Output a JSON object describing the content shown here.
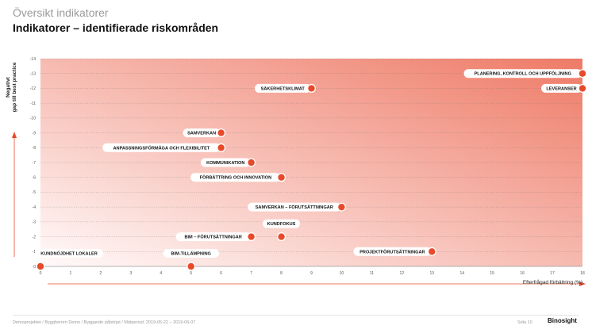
{
  "header": {
    "supertitle": "Översikt indikatorer",
    "title": "Indikatorer – identifierade riskområden"
  },
  "colors": {
    "point": "#e8492a",
    "grad_light": "#fffafa",
    "grad_dark": "#ee7a66",
    "arrow": "#e8492a"
  },
  "chart_data": {
    "type": "scatter",
    "xlabel": "Efterfrågad förbättring (%)",
    "ylabel_line1": "Negativt",
    "ylabel_line2": "gap till best practice",
    "xlim": [
      0,
      18
    ],
    "ylim": [
      0,
      14
    ],
    "x_ticks": [
      0,
      1,
      2,
      3,
      4,
      5,
      6,
      7,
      8,
      9,
      10,
      11,
      12,
      13,
      14,
      15,
      16,
      17,
      18
    ],
    "y_tick_labels": [
      "0",
      "-1",
      "-2",
      "-3",
      "-4",
      "-5",
      "-6",
      "-7",
      "-8",
      "-9",
      "-10",
      "-11",
      "-12",
      "-13",
      "-14"
    ],
    "grid": true,
    "points": [
      {
        "label": "KUNDNÖJDHET LOKALER",
        "x": 0,
        "y": 0,
        "side": "above"
      },
      {
        "label": "BIM-TILLÄMPNING",
        "x": 5,
        "y": 0,
        "side": "above"
      },
      {
        "label": "PROJEKTFÖRUTSÄTTNINGAR",
        "x": 13,
        "y": 1,
        "side": "left"
      },
      {
        "label": "BIM – FÖRUTSÄTTNINGAR",
        "x": 7,
        "y": 2,
        "side": "left"
      },
      {
        "label": "KUNDFOKUS",
        "x": 8,
        "y": 2,
        "side": "above"
      },
      {
        "label": "SAMVERKAN – FÖRUTSÄTTNINGAR",
        "x": 10,
        "y": 4,
        "side": "left"
      },
      {
        "label": "FÖRBÄTTRING OCH INNOVATION",
        "x": 8,
        "y": 6,
        "side": "left"
      },
      {
        "label": "KOMMUNIKATION",
        "x": 7,
        "y": 7,
        "side": "left"
      },
      {
        "label": "ANPASSNINGSFÖRMÅGA OCH FLEXIBILITET",
        "x": 6,
        "y": 8,
        "side": "left"
      },
      {
        "label": "SAMVERKAN",
        "x": 6,
        "y": 9,
        "side": "left"
      },
      {
        "label": "SÄKERHETSKLIMAT",
        "x": 9,
        "y": 12,
        "side": "left"
      },
      {
        "label": "LEVERANSER",
        "x": 18,
        "y": 12,
        "side": "left"
      },
      {
        "label": "PLANERING, KONTROLL OCH UPPFÖLJNING",
        "x": 18,
        "y": 13,
        "side": "left"
      }
    ]
  },
  "footer": {
    "text": "Demoprojektet / Byggherren Demo / Byggande påbörjat / Mätperiod: 2019-05-22 – 2019-06-07",
    "page": "Sida 10",
    "brand": "Binosight"
  }
}
